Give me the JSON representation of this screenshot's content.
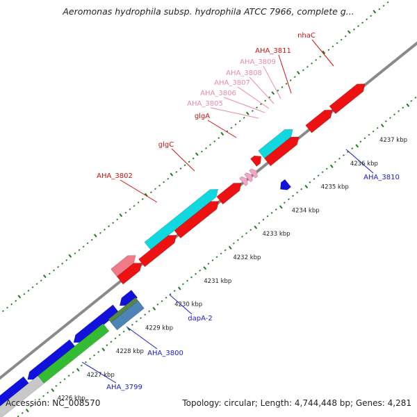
{
  "title": "Aeromonas hydrophila subsp. hydrophila ATCC 7966, complete g...",
  "footer": {
    "accession": "Accession: NC_008570",
    "summary": "Topology: circular; Length: 4,744,448 bp; Genes: 4,281"
  },
  "colors": {
    "forward_cds": "#ee1111",
    "reverse_cds": "#1111dd",
    "cyan_feature": "#11d8e0",
    "green_feature": "#33bb33",
    "pink_feature": "#f07a86",
    "gray_feature": "#c8c8c8",
    "olive_feature": "#558844",
    "steel_feature": "#4b84b5",
    "tick_green": "#1a7a1a",
    "backbone": "#8a8a8a",
    "label_forward": "#cc1111",
    "label_light": "#e88aa8",
    "label_reverse": "#1a1acc"
  },
  "scale": {
    "unit": "kbp",
    "ticks": [
      "4226 kbp",
      "4227 kbp",
      "4228 kbp",
      "4229 kbp",
      "4230 kbp",
      "4231 kbp",
      "4232 kbp",
      "4233 kbp",
      "4234 kbp",
      "4235 kbp",
      "4236 kbp",
      "4237 kbp"
    ]
  },
  "gene_labels_top": [
    "nhaC",
    "AHA_3811",
    "AHA_3809",
    "AHA_3808",
    "AHA_3807",
    "AHA_3806",
    "AHA_3805",
    "glgA",
    "glgC",
    "AHA_3802"
  ],
  "gene_labels_bottom": [
    "AHA_3810",
    "dapA-2",
    "AHA_3800",
    "AHA_3799"
  ]
}
